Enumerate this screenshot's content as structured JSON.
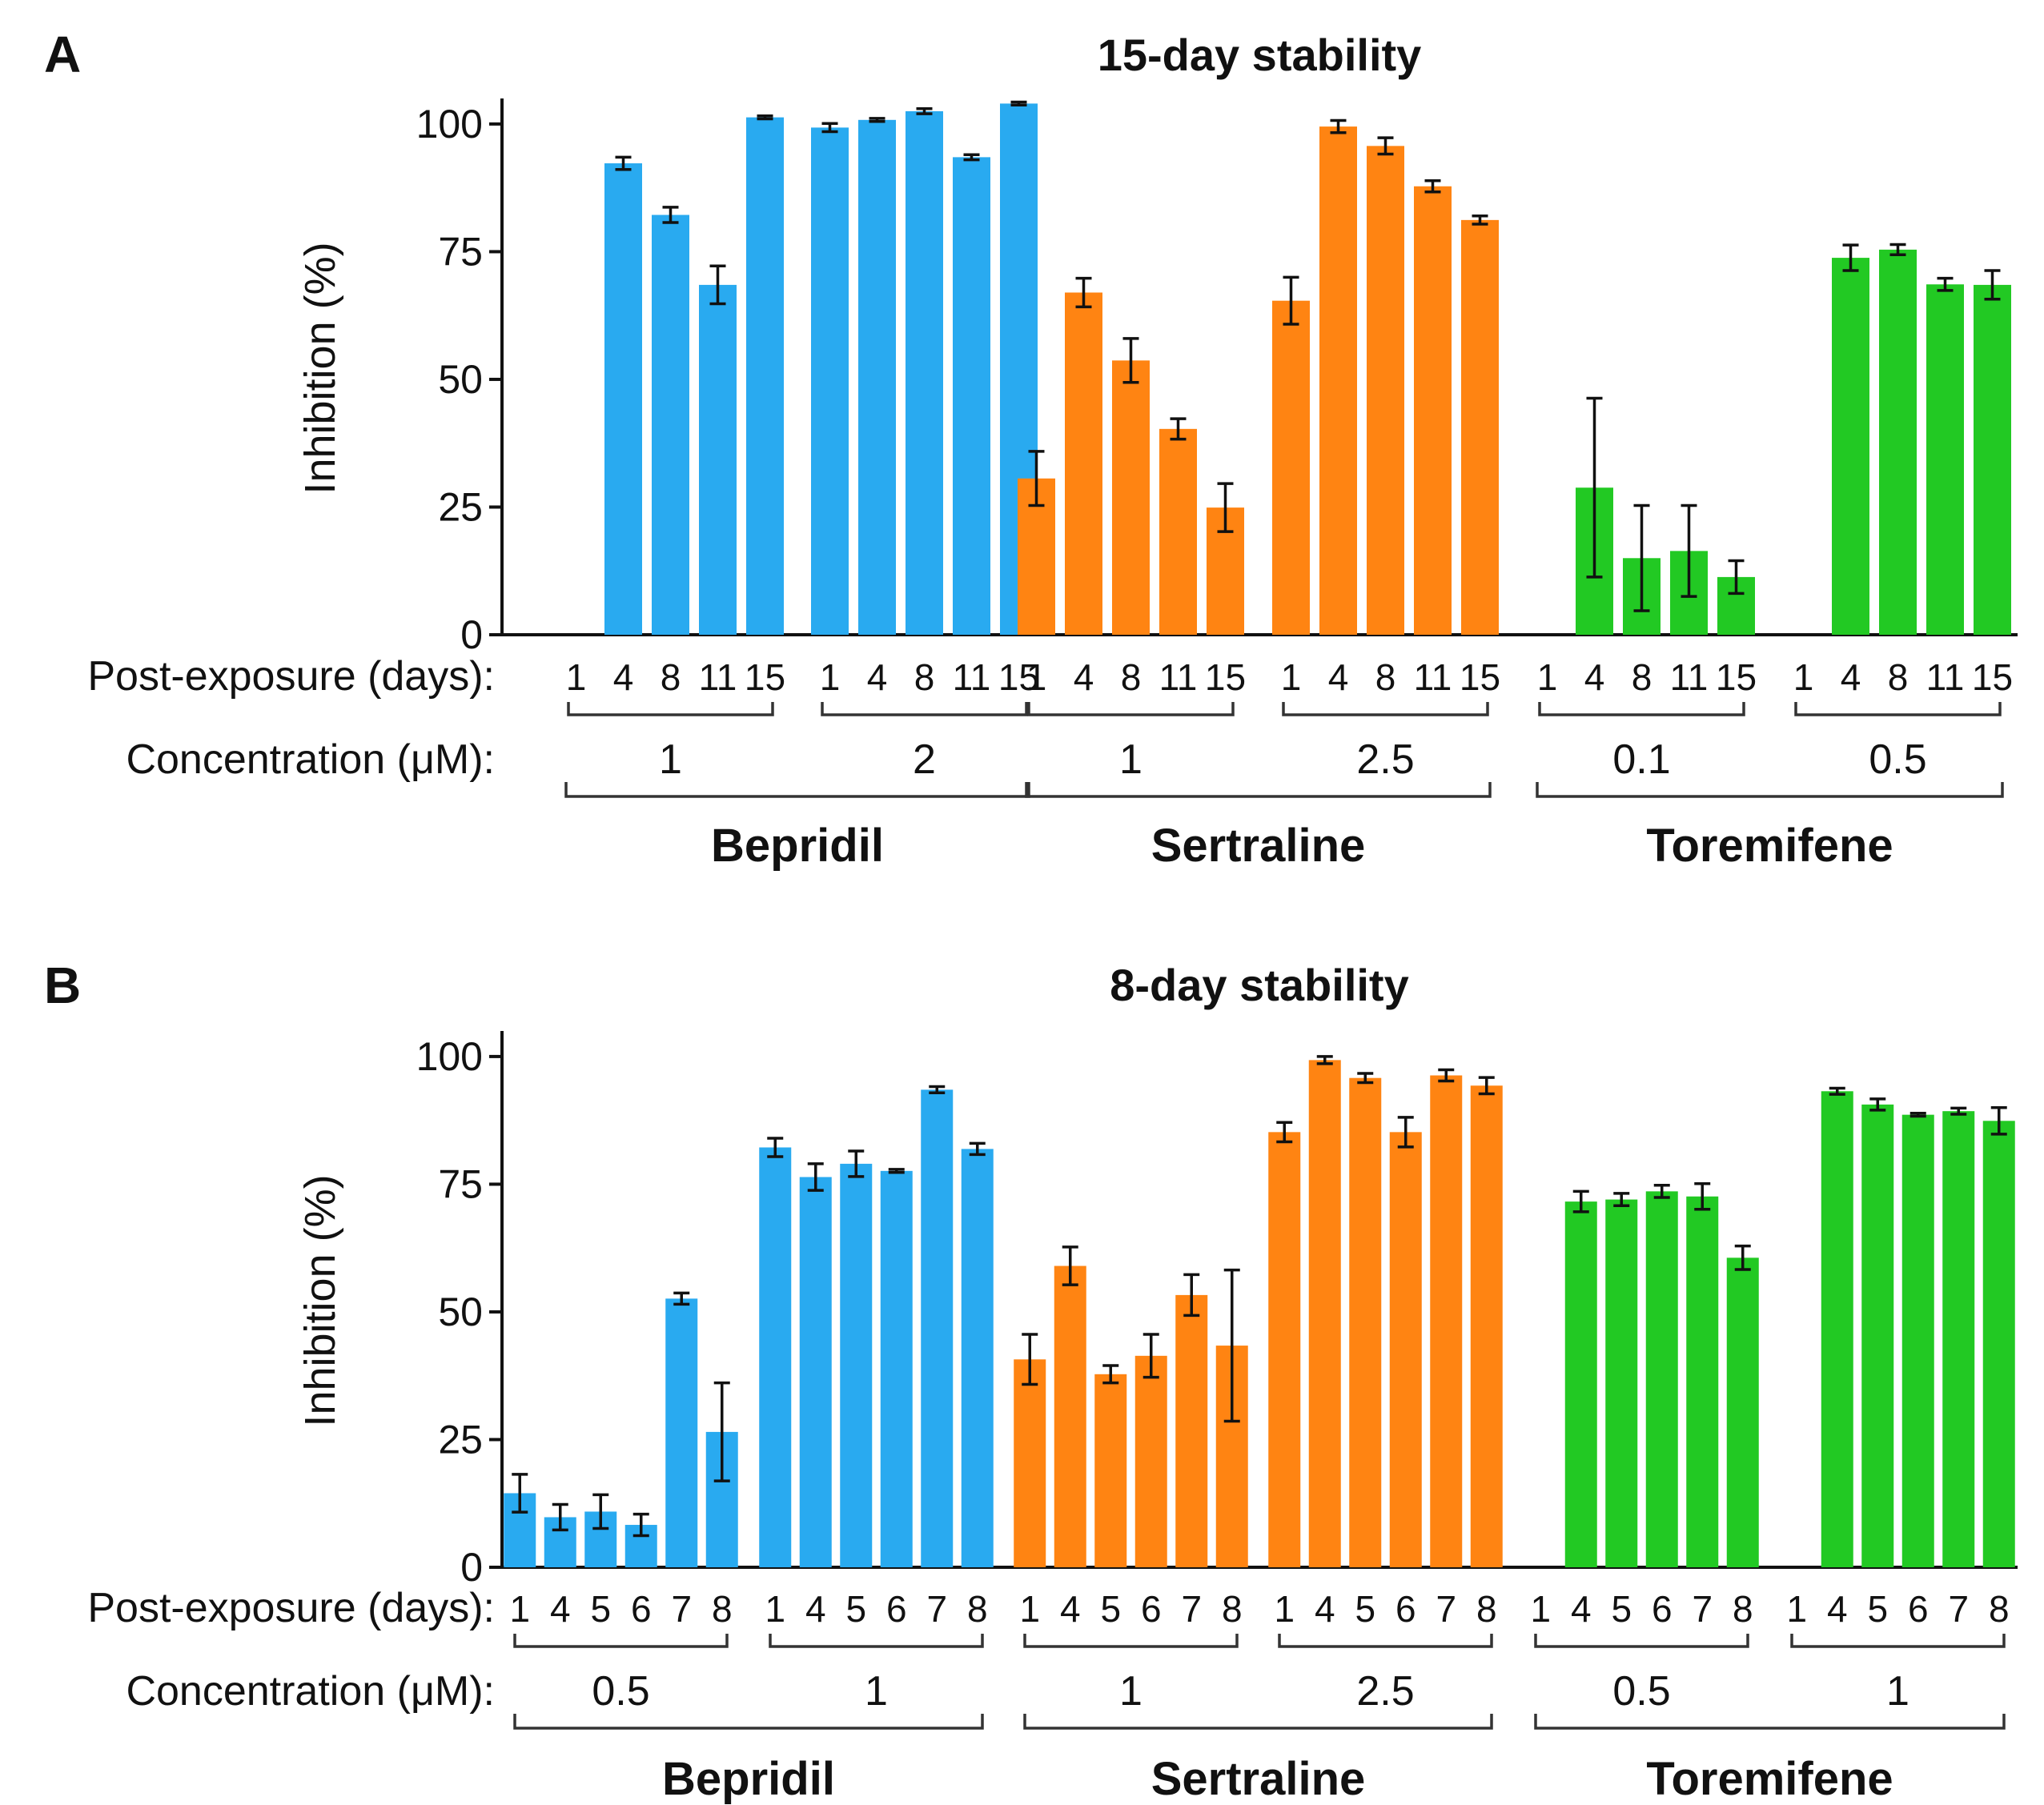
{
  "colors": {
    "Bepridil": "#29aaf0",
    "Sertraline": "#ff8412",
    "Toremifene": "#22c923"
  },
  "chart_data": [
    {
      "panel": "A",
      "type": "bar",
      "title": "15-day stability",
      "ylabel": "Inhibition (%)",
      "ylim": [
        0,
        105
      ],
      "yticks": [
        0,
        25,
        50,
        75,
        100
      ],
      "row1_label": "Post-exposure (days):",
      "row2_label": "Concentration (μM):",
      "groups": [
        {
          "drug": "Bepridil",
          "conc": "1",
          "days": [
            "1",
            "4",
            "8",
            "11",
            "15"
          ],
          "values": [
            null,
            92.3,
            82.2,
            68.5,
            101.3
          ],
          "errors": [
            null,
            1.2,
            1.5,
            3.7,
            0.3
          ]
        },
        {
          "drug": "Bepridil",
          "conc": "2",
          "days": [
            "1",
            "4",
            "8",
            "11",
            "15"
          ],
          "values": [
            99.3,
            100.8,
            102.5,
            93.5,
            104.0
          ],
          "errors": [
            0.8,
            0.3,
            0.5,
            0.5,
            0.3
          ]
        },
        {
          "drug": "Sertraline",
          "conc": "1",
          "days": [
            "1",
            "4",
            "8",
            "11",
            "15"
          ],
          "values": [
            30.6,
            67.0,
            53.7,
            40.3,
            24.9
          ],
          "errors": [
            5.3,
            2.8,
            4.3,
            2.0,
            4.7
          ]
        },
        {
          "drug": "Sertraline",
          "conc": "2.5",
          "days": [
            "1",
            "4",
            "8",
            "11",
            "15"
          ],
          "values": [
            65.4,
            99.5,
            95.7,
            87.8,
            81.2
          ],
          "errors": [
            4.6,
            1.2,
            1.6,
            1.1,
            0.8
          ]
        },
        {
          "drug": "Toremifene",
          "conc": "0.1",
          "days": [
            "1",
            "4",
            "8",
            "11",
            "15"
          ],
          "values": [
            null,
            28.8,
            15.0,
            16.4,
            11.3
          ],
          "errors": [
            null,
            17.5,
            10.3,
            8.9,
            3.2
          ]
        },
        {
          "drug": "Toremifene",
          "conc": "0.5",
          "days": [
            "1",
            "4",
            "8",
            "11",
            "15"
          ],
          "values": [
            null,
            73.8,
            75.4,
            68.6,
            68.5
          ],
          "errors": [
            null,
            2.5,
            1.0,
            1.2,
            2.8
          ]
        }
      ],
      "drugs": [
        "Bepridil",
        "Sertraline",
        "Toremifene"
      ]
    },
    {
      "panel": "B",
      "type": "bar",
      "title": "8-day stability",
      "ylabel": "Inhibition (%)",
      "ylim": [
        0,
        105
      ],
      "yticks": [
        0,
        25,
        50,
        75,
        100
      ],
      "row1_label": "Post-exposure (days):",
      "row2_label": "Concentration (μM):",
      "groups": [
        {
          "drug": "Bepridil",
          "conc": "0.5",
          "days": [
            "1",
            "4",
            "5",
            "6",
            "7",
            "8"
          ],
          "values": [
            14.5,
            9.8,
            10.9,
            8.3,
            52.6,
            26.5
          ],
          "errors": [
            3.7,
            2.5,
            3.3,
            2.1,
            1.1,
            9.6
          ]
        },
        {
          "drug": "Bepridil",
          "conc": "1",
          "days": [
            "1",
            "4",
            "5",
            "6",
            "7",
            "8"
          ],
          "values": [
            82.2,
            76.4,
            79.0,
            77.6,
            93.5,
            81.9
          ],
          "errors": [
            1.8,
            2.6,
            2.5,
            0.3,
            0.6,
            1.1
          ]
        },
        {
          "drug": "Sertraline",
          "conc": "1",
          "days": [
            "1",
            "4",
            "5",
            "6",
            "7",
            "8"
          ],
          "values": [
            40.7,
            59.0,
            37.8,
            41.4,
            53.3,
            43.4
          ],
          "errors": [
            4.9,
            3.7,
            1.7,
            4.2,
            4.0,
            14.8
          ]
        },
        {
          "drug": "Sertraline",
          "conc": "2.5",
          "days": [
            "1",
            "4",
            "5",
            "6",
            "7",
            "8"
          ],
          "values": [
            85.2,
            99.3,
            95.8,
            85.2,
            96.3,
            94.3
          ],
          "errors": [
            1.9,
            0.7,
            0.9,
            2.9,
            1.1,
            1.6
          ]
        },
        {
          "drug": "Toremifene",
          "conc": "0.5",
          "days": [
            "1",
            "4",
            "5",
            "6",
            "7",
            "8"
          ],
          "values": [
            null,
            71.6,
            72.0,
            73.6,
            72.6,
            60.6
          ],
          "errors": [
            null,
            2.0,
            1.2,
            1.2,
            2.5,
            2.3
          ]
        },
        {
          "drug": "Toremifene",
          "conc": "1",
          "days": [
            "1",
            "4",
            "5",
            "6",
            "7",
            "8"
          ],
          "values": [
            null,
            93.2,
            90.6,
            88.6,
            89.3,
            87.4
          ],
          "errors": [
            null,
            0.6,
            1.1,
            0.3,
            0.6,
            2.6
          ]
        }
      ],
      "drugs": [
        "Bepridil",
        "Sertraline",
        "Toremifene"
      ]
    }
  ]
}
